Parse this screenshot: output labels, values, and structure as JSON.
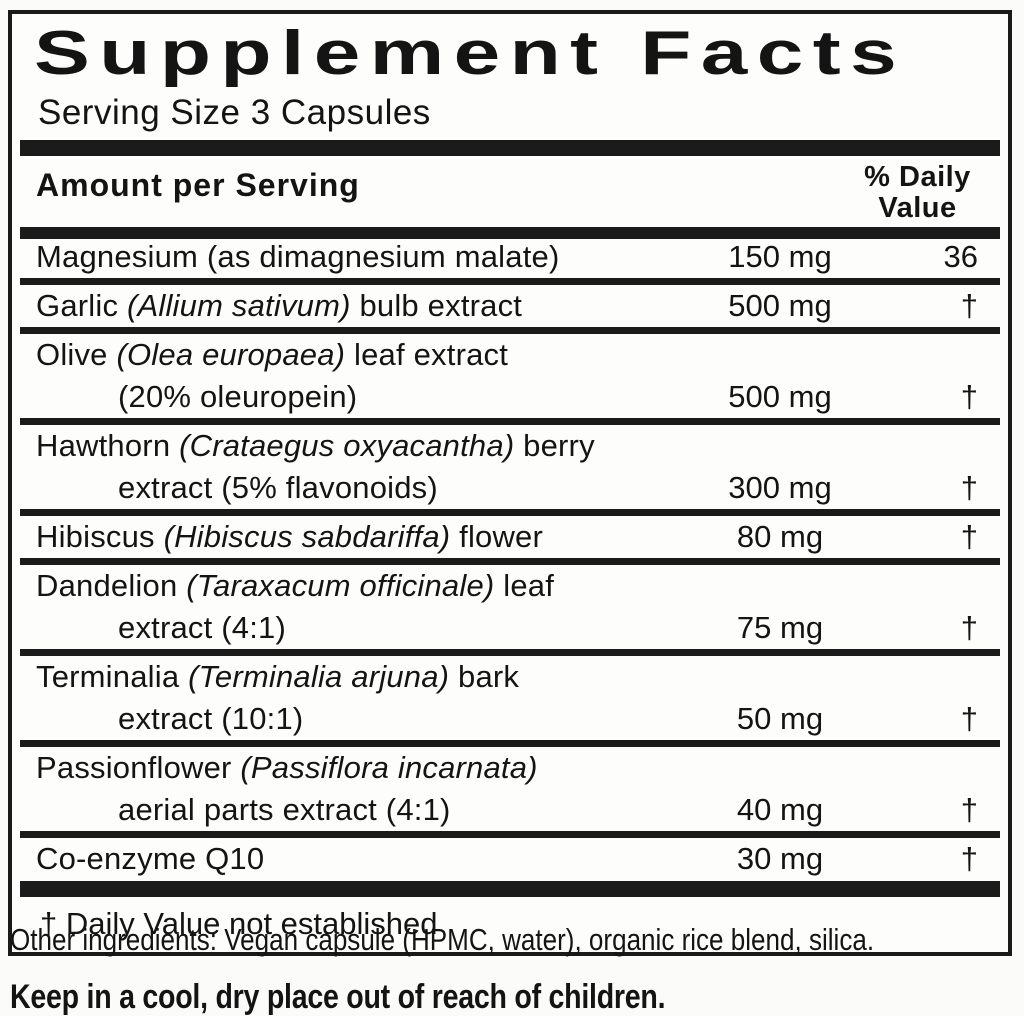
{
  "panel": {
    "title": "Supplement Facts",
    "serving_size": "Serving Size 3 Capsules",
    "header": {
      "amount": "Amount per Serving",
      "dv_line1": "% Daily",
      "dv_line2": "Value"
    },
    "rows": [
      {
        "line1": [
          {
            "text": "Magnesium (as dimagnesium malate)",
            "italic": false
          }
        ],
        "amount": "150 mg",
        "dv": "36"
      },
      {
        "line1": [
          {
            "text": "Garlic ",
            "italic": false
          },
          {
            "text": "(Allium sativum)",
            "italic": true
          },
          {
            "text": " bulb extract",
            "italic": false
          }
        ],
        "amount": "500 mg",
        "dv": "†"
      },
      {
        "line1": [
          {
            "text": "Olive ",
            "italic": false
          },
          {
            "text": "(Olea europaea)",
            "italic": true
          },
          {
            "text": " leaf extract",
            "italic": false
          }
        ],
        "line2": "(20% oleuropein)",
        "amount": "500 mg",
        "dv": "†"
      },
      {
        "line1": [
          {
            "text": "Hawthorn ",
            "italic": false
          },
          {
            "text": "(Crataegus oxyacantha)",
            "italic": true
          },
          {
            "text": " berry",
            "italic": false
          }
        ],
        "line2": "extract (5% flavonoids)",
        "amount": "300 mg",
        "dv": "†"
      },
      {
        "line1": [
          {
            "text": "Hibiscus ",
            "italic": false
          },
          {
            "text": "(Hibiscus sabdariffa)",
            "italic": true
          },
          {
            "text": " flower",
            "italic": false
          }
        ],
        "amount": "80 mg",
        "dv": "†"
      },
      {
        "line1": [
          {
            "text": "Dandelion ",
            "italic": false
          },
          {
            "text": "(Taraxacum officinale)",
            "italic": true
          },
          {
            "text": " leaf",
            "italic": false
          }
        ],
        "line2": "extract (4:1)",
        "amount": "75 mg",
        "dv": "†"
      },
      {
        "line1": [
          {
            "text": "Terminalia ",
            "italic": false
          },
          {
            "text": "(Terminalia arjuna)",
            "italic": true
          },
          {
            "text": " bark",
            "italic": false
          }
        ],
        "line2": "extract (10:1)",
        "amount": "50 mg",
        "dv": "†"
      },
      {
        "line1": [
          {
            "text": "Passionflower ",
            "italic": false
          },
          {
            "text": "(Passiflora incarnata)",
            "italic": true
          }
        ],
        "line2": "aerial parts extract (4:1)",
        "amount": "40 mg",
        "dv": "†"
      },
      {
        "line1": [
          {
            "text": "Co-enzyme Q10",
            "italic": false
          }
        ],
        "amount": "30 mg",
        "dv": "†"
      }
    ],
    "footnote": "† Daily Value not established",
    "other_ingredients": "Other ingredients: Vegan capsule (HPMC, water), organic rice blend, silica.",
    "storage": "Keep in a cool, dry place out of reach of children.",
    "colors": {
      "ink": "#141414",
      "bar": "#1b1b1b",
      "background": "#fdfdfb"
    }
  }
}
